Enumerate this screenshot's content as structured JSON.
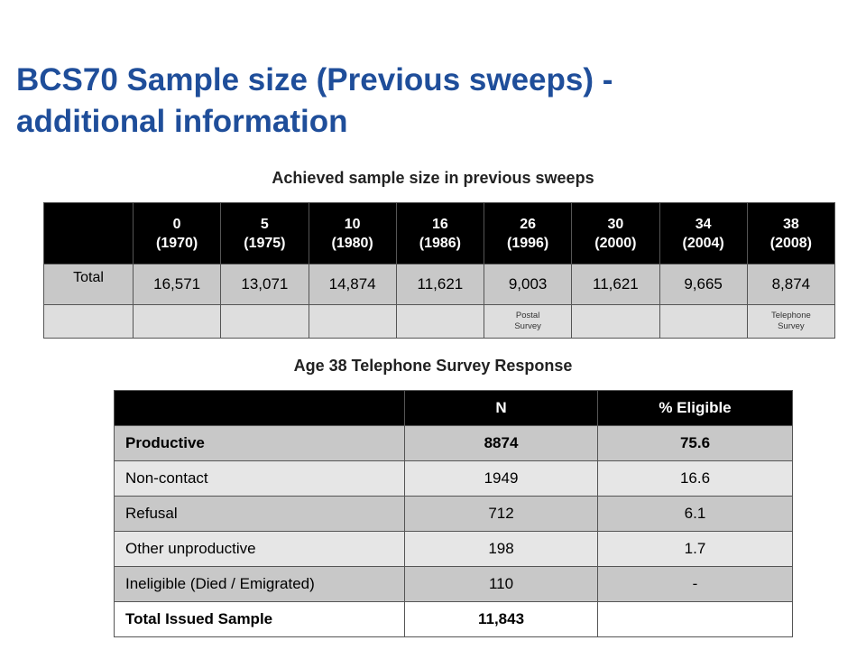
{
  "title": {
    "line1": "BCS70 Sample size (Previous sweeps)  -",
    "line2": "additional information"
  },
  "sweeps_table": {
    "caption": "Achieved sample size in previous sweeps",
    "columns": [
      {
        "age": "0",
        "year": "(1970)"
      },
      {
        "age": "5",
        "year": "(1975)"
      },
      {
        "age": "10",
        "year": "(1980)"
      },
      {
        "age": "16",
        "year": "(1986)"
      },
      {
        "age": "26",
        "year": "(1996)"
      },
      {
        "age": "30",
        "year": "(2000)"
      },
      {
        "age": "34",
        "year": "(2004)"
      },
      {
        "age": "38",
        "year": "(2008)"
      }
    ],
    "total_label": "Total",
    "totals": [
      "16,571",
      "13,071",
      "14,874",
      "11,621",
      "9,003",
      "11,621",
      "9,665",
      "8,874"
    ],
    "notes": [
      [
        "",
        ""
      ],
      [
        "",
        ""
      ],
      [
        "",
        ""
      ],
      [
        "",
        ""
      ],
      [
        "Postal",
        "Survey"
      ],
      [
        "",
        ""
      ],
      [
        "",
        ""
      ],
      [
        "Telephone",
        "Survey"
      ]
    ]
  },
  "response_table": {
    "caption": "Age 38 Telephone Survey Response",
    "headers": [
      "",
      "N",
      "% Eligible"
    ],
    "rows": [
      {
        "label": "Productive",
        "n": "8874",
        "pct": "75.6"
      },
      {
        "label": "Non-contact",
        "n": "1949",
        "pct": "16.6"
      },
      {
        "label": "Refusal",
        "n": "712",
        "pct": "6.1"
      },
      {
        "label": "Other unproductive",
        "n": "198",
        "pct": "1.7"
      },
      {
        "label": "Ineligible (Died / Emigrated)",
        "n": "110",
        "pct": "-"
      },
      {
        "label": "Total Issued Sample",
        "n": "11,843",
        "pct": ""
      }
    ]
  }
}
